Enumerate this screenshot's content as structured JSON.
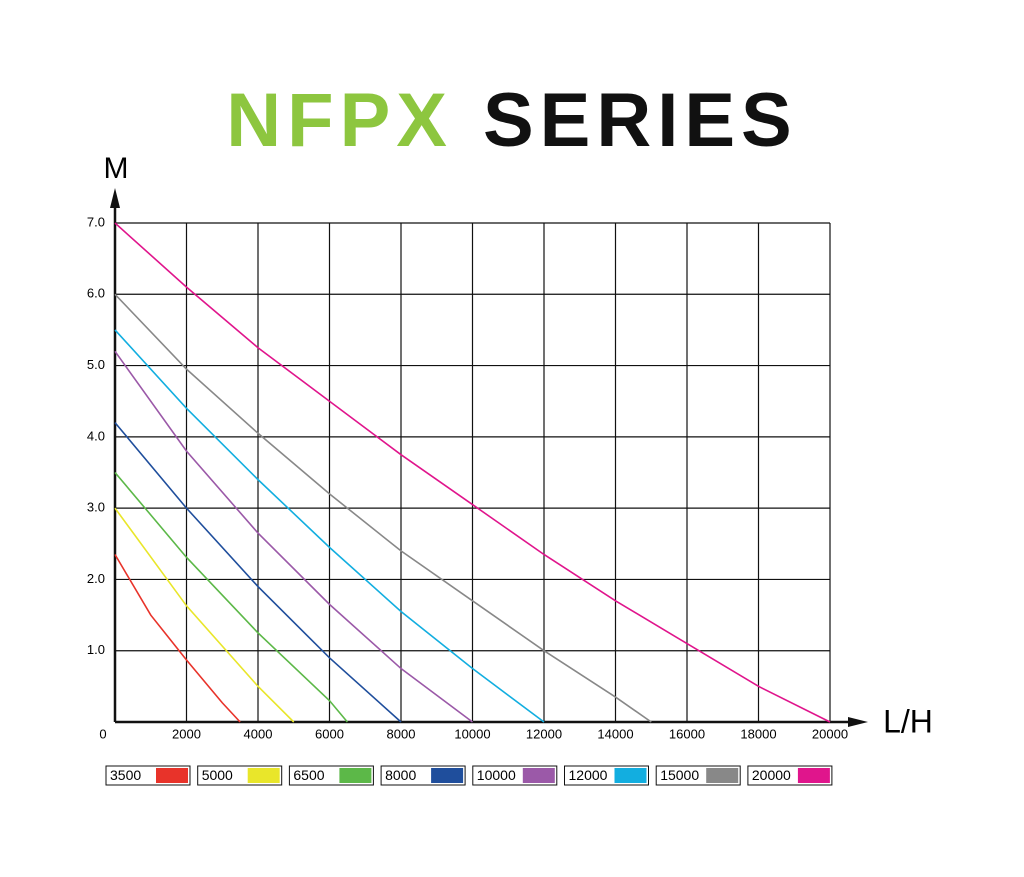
{
  "chart_data": {
    "type": "line",
    "title": [
      "NFPX",
      "SERIES"
    ],
    "title_colors": [
      "#8dc63f",
      "#111111"
    ],
    "y_label": "M",
    "x_label": "L/H",
    "xlim": [
      0,
      20000
    ],
    "ylim": [
      0,
      7
    ],
    "xticks": [
      0,
      2000,
      4000,
      6000,
      8000,
      10000,
      12000,
      14000,
      16000,
      18000,
      20000
    ],
    "yticks": [
      {
        "value": 1,
        "label": "1.0"
      },
      {
        "value": 2,
        "label": "2.0"
      },
      {
        "value": 3,
        "label": "3.0"
      },
      {
        "value": 4,
        "label": "4.0"
      },
      {
        "value": 5,
        "label": "5.0"
      },
      {
        "value": 6,
        "label": "6.0"
      },
      {
        "value": 7,
        "label": "7.0"
      }
    ],
    "grid": true,
    "series": [
      {
        "name": "3500",
        "color": "#e8332a",
        "x": [
          0,
          1000,
          2000,
          3000,
          3500
        ],
        "values": [
          2.35,
          1.5,
          0.87,
          0.27,
          0
        ]
      },
      {
        "name": "5000",
        "color": "#e9e62a",
        "x": [
          0,
          2000,
          4000,
          5000
        ],
        "values": [
          3.0,
          1.63,
          0.5,
          0
        ]
      },
      {
        "name": "6500",
        "color": "#5cb848",
        "x": [
          0,
          2000,
          4000,
          6000,
          6500
        ],
        "values": [
          3.5,
          2.31,
          1.25,
          0.3,
          0
        ]
      },
      {
        "name": "8000",
        "color": "#1f4e9c",
        "x": [
          0,
          2000,
          4000,
          6000,
          8000
        ],
        "values": [
          4.2,
          3.0,
          1.9,
          0.9,
          0
        ]
      },
      {
        "name": "10000",
        "color": "#9b59a8",
        "x": [
          0,
          2000,
          4000,
          6000,
          8000,
          10000
        ],
        "values": [
          5.2,
          3.8,
          2.65,
          1.65,
          0.75,
          0
        ]
      },
      {
        "name": "12000",
        "color": "#12aee0",
        "x": [
          0,
          2000,
          4000,
          6000,
          8000,
          10000,
          12000
        ],
        "values": [
          5.5,
          4.4,
          3.4,
          2.45,
          1.55,
          0.75,
          0
        ]
      },
      {
        "name": "15000",
        "color": "#888888",
        "x": [
          0,
          2000,
          4000,
          6000,
          8000,
          10000,
          12000,
          14000,
          15000
        ],
        "values": [
          6.0,
          4.95,
          4.05,
          3.2,
          2.4,
          1.7,
          1.0,
          0.35,
          0
        ]
      },
      {
        "name": "20000",
        "color": "#e0158c",
        "x": [
          0,
          2000,
          4000,
          6000,
          8000,
          10000,
          12000,
          14000,
          16000,
          18000,
          20000
        ],
        "values": [
          7.0,
          6.1,
          5.25,
          4.5,
          3.75,
          3.05,
          2.35,
          1.7,
          1.1,
          0.5,
          0
        ]
      }
    ]
  }
}
